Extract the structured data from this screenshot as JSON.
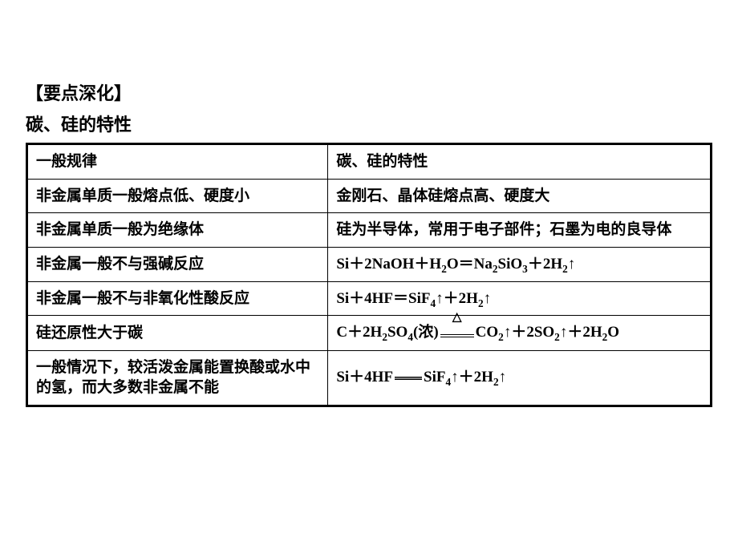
{
  "heading1": "【要点深化】",
  "heading2": "碳、硅的特性",
  "table": {
    "head": {
      "left": "一般规律",
      "right": "碳、硅的特性"
    },
    "rows": [
      {
        "left": "非金属单质一般熔点低、硬度小",
        "right": "金刚石、晶体硅熔点高、硬度大"
      },
      {
        "left": "非金属单质一般为绝缘体",
        "right": "硅为半导体，常用于电子部件；石墨为电的良导体"
      },
      {
        "left": "非金属一般不与强碱反应",
        "right_html": "<span class=\"chem\">Si＋2NaOH＋H<sub>2</sub>O＝Na<sub>2</sub>SiO<sub>3</sub>＋2H<sub>2</sub>↑</span>"
      },
      {
        "left": "非金属一般不与非氧化性酸反应",
        "right_html": "<span class=\"chem\">Si＋4HF＝SiF<sub>4</sub>↑＋2H<sub>2</sub>↑</span>"
      },
      {
        "left": "硅还原性大于碳",
        "right_html": "<span class=\"chem\">C＋2H<sub>2</sub>SO<sub>4</sub>(浓)<span class=\"eqcond\"><span class=\"tri\">△</span><span class=\"bars\"></span></span>CO<sub>2</sub>↑＋2SO<sub>2</sub>↑＋2H<sub>2</sub>O</span>"
      },
      {
        "left": "一般情况下，较活泼金属能置换酸或水中的氢，而大多数非金属不能",
        "right_html": "<span class=\"chem\">Si＋4HF<span class=\"tripleeq\"></span>SiF<sub>4</sub>↑＋2H<sub>2</sub>↑</span>"
      }
    ]
  }
}
